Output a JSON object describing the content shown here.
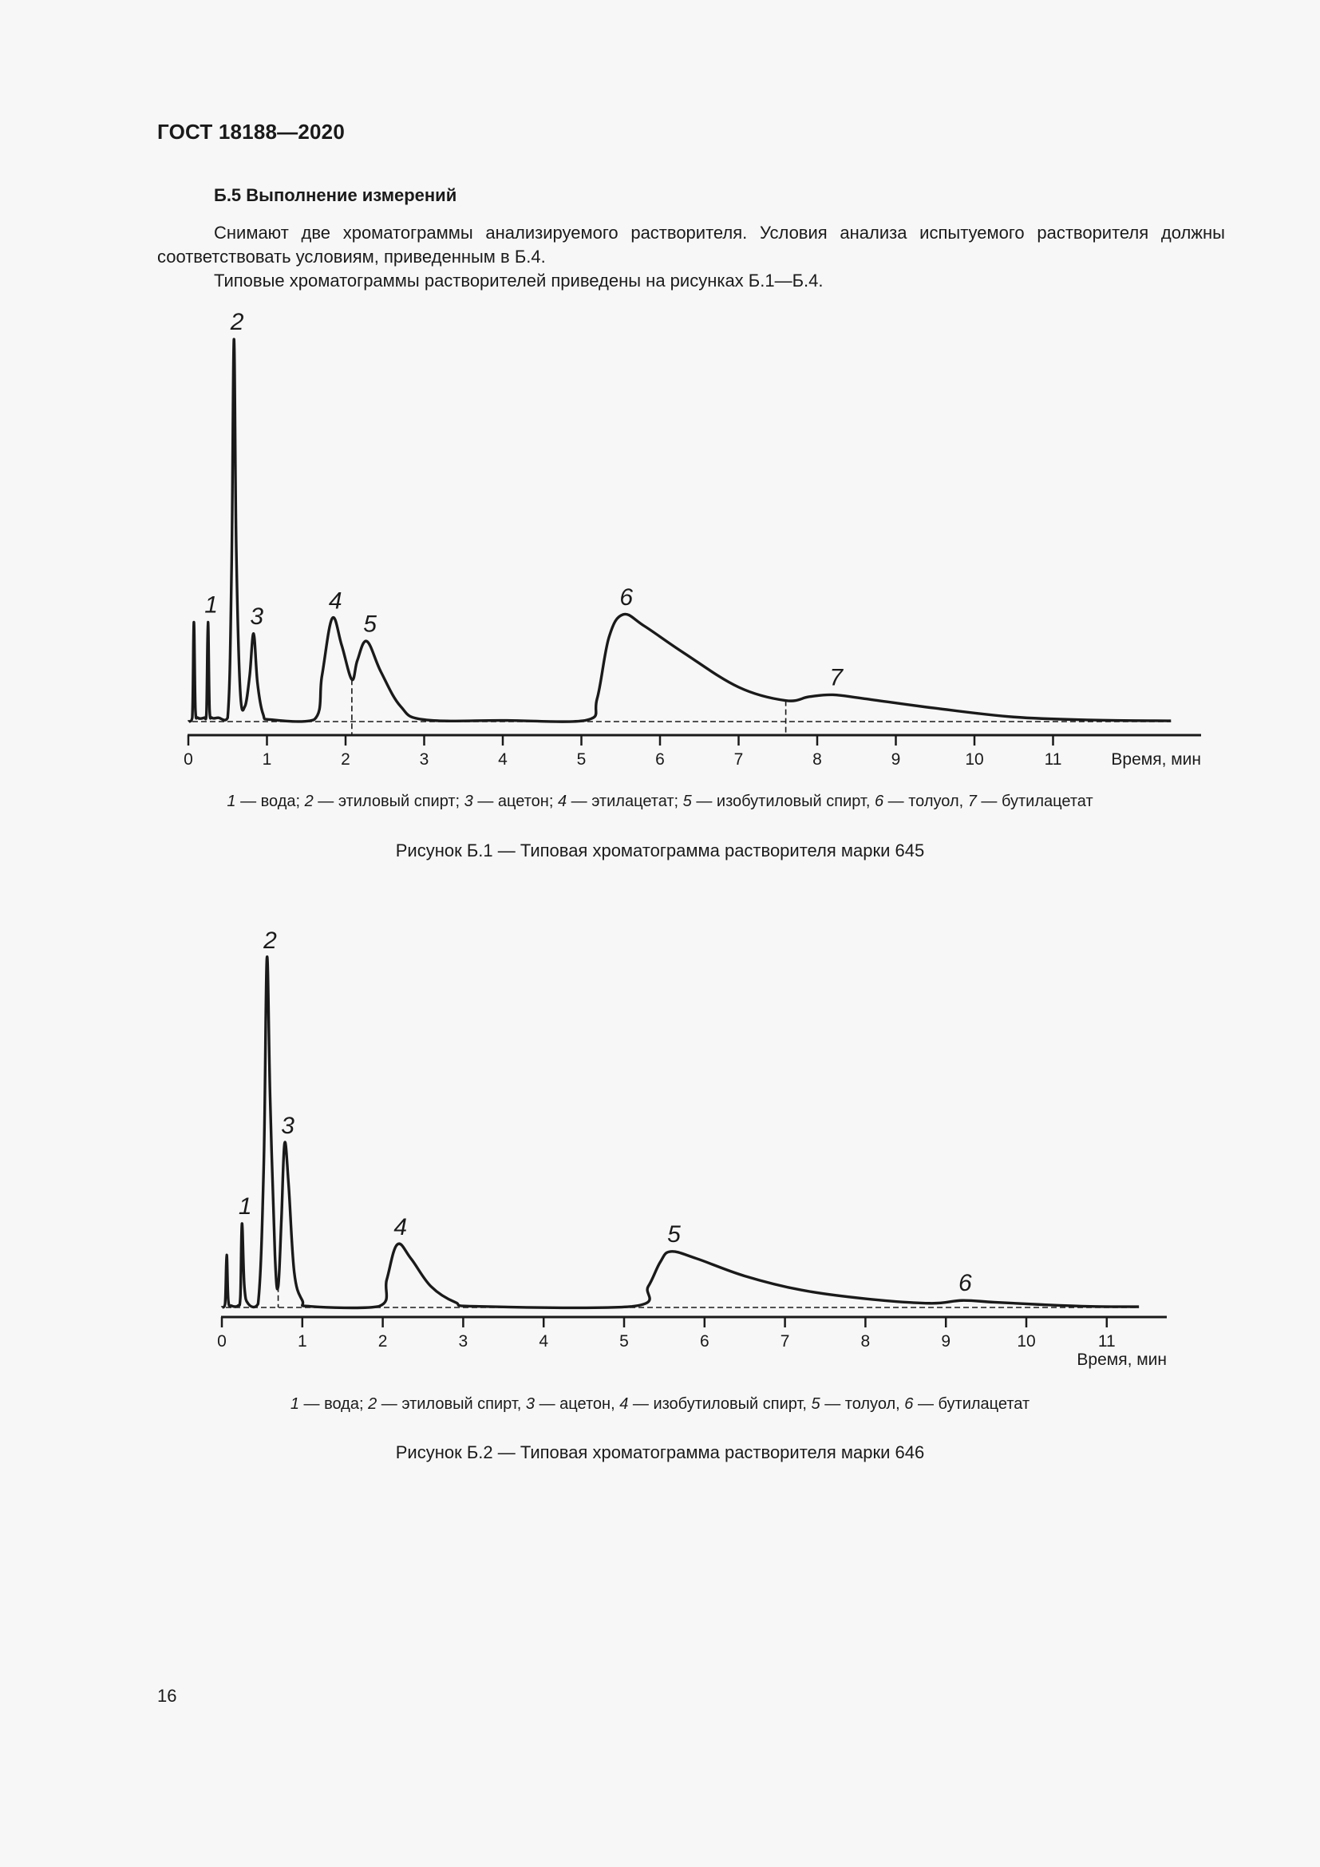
{
  "document": {
    "header": "ГОСТ 18188—2020",
    "section_title": "Б.5  Выполнение измерений",
    "paragraph_1": "Снимают две хроматограммы анализируемого растворителя. Условия анализа испытуемого растворителя должны соответствовать условиям, приведенным в Б.4.",
    "paragraph_2": "Типовые хроматограммы растворителей приведены на рисунках Б.1—Б.4.",
    "page_number": "16"
  },
  "figures": [
    {
      "legend": [
        {
          "num": "1",
          "name": "вода",
          "sep": "; "
        },
        {
          "num": "2",
          "name": "этиловый спирт",
          "sep": "; "
        },
        {
          "num": "3",
          "name": "ацетон",
          "sep": "; "
        },
        {
          "num": "4",
          "name": "этилацетат",
          "sep": "; "
        },
        {
          "num": "5",
          "name": "изобутиловый спирт",
          "sep": ", "
        },
        {
          "num": "6",
          "name": "толуол",
          "sep": ", "
        },
        {
          "num": "7",
          "name": "бутилацетат",
          "sep": ""
        }
      ],
      "caption": "Рисунок Б.1 — Типовая хроматограмма растворителя марки 645"
    },
    {
      "legend": [
        {
          "num": "1",
          "name": "вода",
          "sep": "; "
        },
        {
          "num": "2",
          "name": "этиловый спирт",
          "sep": ", "
        },
        {
          "num": "3",
          "name": "ацетон",
          "sep": ", "
        },
        {
          "num": "4",
          "name": "изобутиловый спирт",
          "sep": ", "
        },
        {
          "num": "5",
          "name": "толуол",
          "sep": ", "
        },
        {
          "num": "6",
          "name": "бутилацетат",
          "sep": ""
        }
      ],
      "caption": "Рисунок Б.2 — Типовая хроматограмма растворителя марки 646"
    }
  ],
  "chart_data": [
    {
      "type": "line",
      "title": "Рисунок Б.1 — Типовая хроматограмма растворителя марки 645",
      "xlabel": "Время, мин",
      "ylabel": "",
      "xlim": [
        0,
        12.9
      ],
      "x_ticks": [
        "0",
        "1",
        "2",
        "3",
        "4",
        "5",
        "6",
        "7",
        "8",
        "9",
        "10",
        "11"
      ],
      "grid": false,
      "y_units": "relative signal (largest peak = 100)",
      "peaks": [
        {
          "label": "",
          "time_min": 0.07,
          "height": 26
        },
        {
          "label": "1",
          "time_min": 0.25,
          "height": 26
        },
        {
          "label": "2",
          "time_min": 0.58,
          "height": 100
        },
        {
          "label": "3",
          "time_min": 0.83,
          "height": 23
        },
        {
          "label": "4",
          "time_min": 1.83,
          "height": 27
        },
        {
          "label": "5",
          "time_min": 2.27,
          "height": 21
        },
        {
          "label": "6",
          "time_min": 5.53,
          "height": 28
        },
        {
          "label": "7",
          "time_min": 8.2,
          "height": 7
        }
      ],
      "dropline_times_min": [
        2.08,
        7.6
      ],
      "baseline": "dashed",
      "series": [
        {
          "name": "chromatogram 645",
          "x": [
            0.0,
            0.05,
            0.07,
            0.09,
            0.12,
            0.2,
            0.23,
            0.25,
            0.27,
            0.3,
            0.38,
            0.5,
            0.55,
            0.58,
            0.61,
            0.66,
            0.72,
            0.78,
            0.83,
            0.88,
            0.95,
            1.05,
            1.6,
            1.7,
            1.83,
            1.95,
            2.08,
            2.15,
            2.27,
            2.45,
            2.7,
            3.0,
            4.0,
            5.05,
            5.2,
            5.35,
            5.53,
            5.8,
            6.3,
            7.0,
            7.6,
            7.9,
            8.2,
            8.6,
            9.5,
            10.5,
            11.5,
            12.5
          ],
          "y": [
            0.0,
            1,
            26,
            3,
            1,
            1,
            2,
            26,
            3,
            1,
            1,
            1,
            40,
            100,
            45,
            8,
            4,
            12,
            23,
            10,
            2,
            0.5,
            0.5,
            12,
            27,
            20,
            11,
            16,
            21,
            13,
            4,
            0.5,
            0.3,
            0.3,
            6,
            22,
            28,
            25,
            18,
            9,
            5.5,
            6.5,
            7,
            6,
            3.5,
            1.2,
            0.4,
            0.2
          ]
        }
      ]
    },
    {
      "type": "line",
      "title": "Рисунок Б.2 — Типовая хроматограмма растворителя марки 646",
      "xlabel": "Время, мин",
      "ylabel": "",
      "xlim": [
        0,
        11.7
      ],
      "x_ticks": [
        "0",
        "1",
        "2",
        "3",
        "4",
        "5",
        "6",
        "7",
        "8",
        "9",
        "10",
        "11"
      ],
      "grid": false,
      "y_units": "relative signal (largest peak = 100)",
      "peaks": [
        {
          "label": "",
          "time_min": 0.06,
          "height": 15
        },
        {
          "label": "1",
          "time_min": 0.25,
          "height": 24
        },
        {
          "label": "2",
          "time_min": 0.56,
          "height": 100
        },
        {
          "label": "3",
          "time_min": 0.78,
          "height": 47
        },
        {
          "label": "4",
          "time_min": 2.18,
          "height": 18
        },
        {
          "label": "5",
          "time_min": 5.58,
          "height": 16
        },
        {
          "label": "6",
          "time_min": 9.2,
          "height": 2
        }
      ],
      "dropline_times_min": [
        0.7
      ],
      "baseline": "dashed",
      "series": [
        {
          "name": "chromatogram 646",
          "x": [
            0.0,
            0.04,
            0.06,
            0.08,
            0.12,
            0.2,
            0.23,
            0.25,
            0.28,
            0.33,
            0.45,
            0.52,
            0.56,
            0.6,
            0.66,
            0.7,
            0.74,
            0.78,
            0.83,
            0.9,
            1.0,
            1.1,
            1.95,
            2.05,
            2.18,
            2.35,
            2.6,
            2.9,
            3.2,
            5.1,
            5.3,
            5.45,
            5.58,
            5.9,
            6.5,
            7.2,
            8.0,
            8.8,
            9.2,
            9.6,
            10.2,
            10.8,
            11.4
          ],
          "y": [
            0.0,
            1,
            15,
            2,
            0.5,
            0.5,
            3,
            24,
            6,
            1,
            1,
            40,
            100,
            60,
            15,
            6,
            25,
            47,
            35,
            10,
            2,
            0.3,
            0.3,
            8,
            18,
            14,
            6,
            1.5,
            0.3,
            0.3,
            6,
            13,
            16,
            14,
            9,
            5,
            2.5,
            1.2,
            2,
            1.5,
            0.8,
            0.3,
            0.2
          ]
        }
      ]
    }
  ]
}
